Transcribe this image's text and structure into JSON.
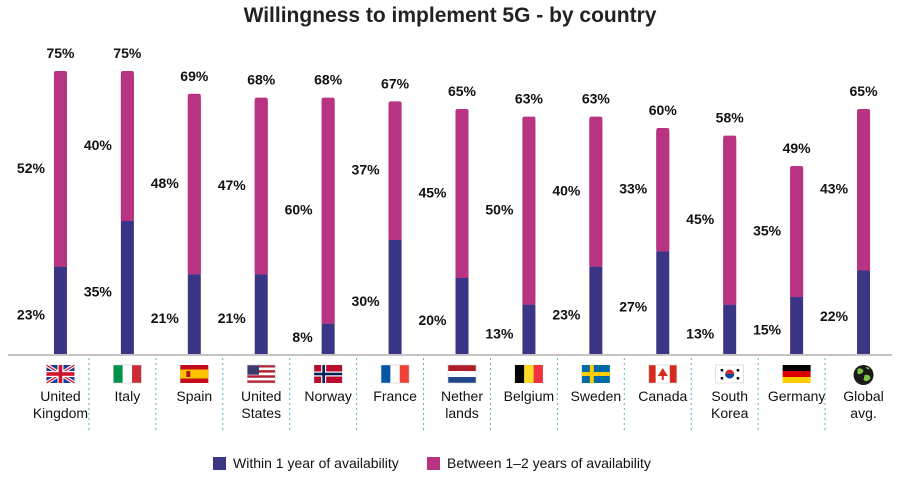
{
  "chart_data": {
    "type": "bar",
    "title": "Willingness to implement 5G - by country",
    "categories": [
      "United Kingdom",
      "Italy",
      "Spain",
      "United States",
      "Norway",
      "France",
      "Netherlands",
      "Belgium",
      "Sweden",
      "Canada",
      "South Korea",
      "Germany",
      "Global avg."
    ],
    "category_lines": [
      [
        "United",
        "Kingdom"
      ],
      [
        "Italy"
      ],
      [
        "Spain"
      ],
      [
        "United",
        "States"
      ],
      [
        "Norway"
      ],
      [
        "France"
      ],
      [
        "Nether",
        "lands"
      ],
      [
        "Belgium"
      ],
      [
        "Sweden"
      ],
      [
        "Canada"
      ],
      [
        "South",
        "Korea"
      ],
      [
        "Germany"
      ],
      [
        "Global",
        "avg."
      ]
    ],
    "flags": [
      "uk",
      "it",
      "es",
      "us",
      "no",
      "fr",
      "nl",
      "be",
      "se",
      "ca",
      "kr",
      "de",
      "globe"
    ],
    "series": [
      {
        "name": "Within 1 year of availability",
        "color": "#3b3585",
        "values": [
          23,
          35,
          21,
          21,
          8,
          30,
          20,
          13,
          23,
          27,
          13,
          15,
          22
        ],
        "labels": [
          "23%",
          "35%",
          "21%",
          "21%",
          "8%",
          "30%",
          "20%",
          "13%",
          "23%",
          "27%",
          "13%",
          "15%",
          "22%"
        ]
      },
      {
        "name": "Between 1–2 years of availability",
        "color": "#b93383",
        "values": [
          52,
          40,
          48,
          47,
          60,
          37,
          45,
          50,
          40,
          33,
          45,
          35,
          43
        ],
        "labels": [
          "52%",
          "40%",
          "48%",
          "47%",
          "60%",
          "37%",
          "45%",
          "50%",
          "40%",
          "33%",
          "45%",
          "35%",
          "43%"
        ]
      }
    ],
    "totals": [
      75,
      75,
      69,
      68,
      68,
      67,
      65,
      63,
      63,
      60,
      58,
      49,
      65
    ],
    "total_labels": [
      "75%",
      "75%",
      "69%",
      "68%",
      "68%",
      "67%",
      "65%",
      "63%",
      "63%",
      "60%",
      "58%",
      "49%",
      "65%"
    ],
    "ylim": [
      0,
      80
    ],
    "stacked": true,
    "legend_position": "bottom-center",
    "xlabel": "",
    "ylabel": ""
  }
}
